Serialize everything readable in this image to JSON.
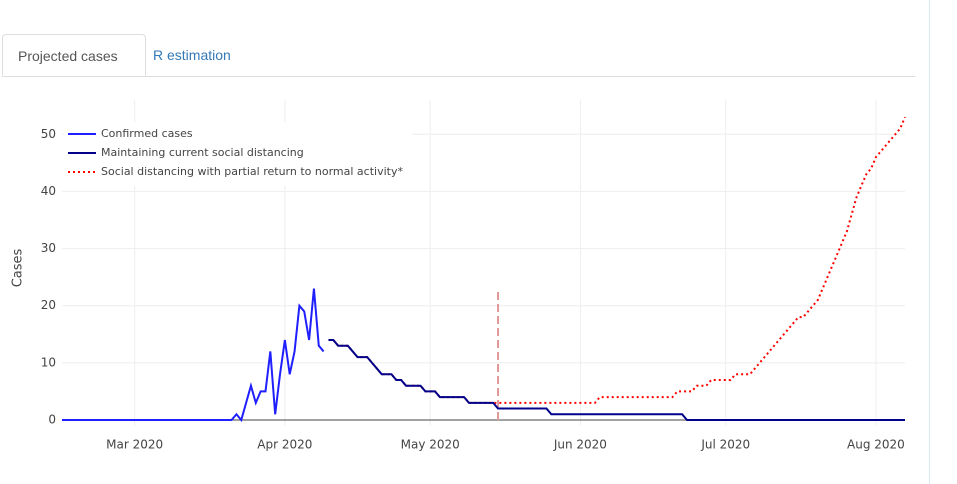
{
  "tabs": [
    "Projected cases",
    "R estimation"
  ],
  "chart_data": {
    "type": "line",
    "y_label": "Cases",
    "xlim": [
      0,
      174
    ],
    "ylim": [
      -1,
      56
    ],
    "xticks": [
      {
        "value": 15,
        "label": "Mar 2020"
      },
      {
        "value": 46,
        "label": "Apr 2020"
      },
      {
        "value": 76,
        "label": "May 2020"
      },
      {
        "value": 107,
        "label": "Jun 2020"
      },
      {
        "value": 137,
        "label": "Jul 2020"
      },
      {
        "value": 168,
        "label": "Aug 2020"
      }
    ],
    "yticks": [
      0,
      10,
      20,
      30,
      40,
      50
    ],
    "grid": true,
    "legend": "top-left",
    "vline": {
      "x": 90,
      "top": 23,
      "color": "#e09999"
    },
    "series": [
      {
        "name": "Confirmed cases",
        "color": "#1f1fff",
        "dash": "solid",
        "x": [
          0,
          1,
          2,
          3,
          4,
          5,
          6,
          7,
          8,
          9,
          10,
          11,
          12,
          13,
          14,
          15,
          16,
          17,
          18,
          19,
          20,
          21,
          22,
          23,
          24,
          25,
          26,
          27,
          28,
          29,
          30,
          31,
          32,
          33,
          34,
          35,
          36,
          37,
          38,
          39,
          40,
          41,
          42,
          43,
          44,
          45,
          46,
          47,
          48,
          49,
          50,
          51,
          52,
          53,
          54
        ],
        "values": [
          0,
          0,
          0,
          0,
          0,
          0,
          0,
          0,
          0,
          0,
          0,
          0,
          0,
          0,
          0,
          0,
          0,
          0,
          0,
          0,
          0,
          0,
          0,
          0,
          0,
          0,
          0,
          0,
          0,
          0,
          0,
          0,
          0,
          0,
          0,
          0,
          1,
          0,
          3,
          6,
          3,
          5,
          5,
          12,
          1,
          8,
          14,
          8,
          12,
          20,
          19,
          14,
          23,
          13,
          12
        ]
      },
      {
        "name": "Maintaining current social distancing",
        "color": "#00008b",
        "dash": "solid",
        "x": [
          55,
          56,
          57,
          58,
          59,
          60,
          61,
          62,
          63,
          64,
          65,
          66,
          67,
          68,
          69,
          70,
          71,
          72,
          73,
          74,
          75,
          76,
          77,
          78,
          79,
          80,
          81,
          82,
          83,
          84,
          85,
          86,
          87,
          88,
          89,
          90,
          91,
          92,
          93,
          94,
          95,
          96,
          97,
          98,
          99,
          100,
          101,
          102,
          103,
          104,
          105,
          106,
          107,
          108,
          109,
          110,
          111,
          112,
          113,
          114,
          115,
          116,
          117,
          118,
          119,
          120,
          121,
          122,
          123,
          124,
          125,
          126,
          127,
          128,
          129,
          130,
          131,
          132,
          133,
          134,
          135,
          136,
          137,
          138,
          139,
          140,
          141,
          142,
          143,
          144,
          145,
          146,
          147,
          148,
          149,
          150,
          151,
          152,
          153,
          154,
          155,
          156,
          157,
          158,
          159,
          160,
          161,
          162,
          163,
          164,
          165,
          166,
          167,
          168,
          169,
          170,
          171,
          172,
          173,
          174
        ],
        "values": [
          14,
          14,
          13,
          13,
          13,
          12,
          11,
          11,
          11,
          10,
          9,
          8,
          8,
          8,
          7,
          7,
          6,
          6,
          6,
          6,
          5,
          5,
          5,
          4,
          4,
          4,
          4,
          4,
          4,
          3,
          3,
          3,
          3,
          3,
          3,
          2,
          2,
          2,
          2,
          2,
          2,
          2,
          2,
          2,
          2,
          2,
          1,
          1,
          1,
          1,
          1,
          1,
          1,
          1,
          1,
          1,
          1,
          1,
          1,
          1,
          1,
          1,
          1,
          1,
          1,
          1,
          1,
          1,
          1,
          1,
          1,
          1,
          1,
          1,
          0,
          0,
          0,
          0,
          0,
          0,
          0,
          0,
          0,
          0,
          0,
          0,
          0,
          0,
          0,
          0,
          0,
          0,
          0,
          0,
          0,
          0,
          0,
          0,
          0,
          0,
          0,
          0,
          0,
          0,
          0,
          0,
          0,
          0,
          0,
          0,
          0,
          0,
          0,
          0,
          0,
          0,
          0,
          0,
          0,
          0
        ]
      },
      {
        "name": "Social distancing with partial return to normal activity*",
        "color": "#ff0000",
        "dash": "dot",
        "x": [
          55,
          56,
          57,
          58,
          59,
          60,
          61,
          62,
          63,
          64,
          65,
          66,
          67,
          68,
          69,
          70,
          71,
          72,
          73,
          74,
          75,
          76,
          77,
          78,
          79,
          80,
          81,
          82,
          83,
          84,
          85,
          86,
          87,
          88,
          89,
          90,
          91,
          92,
          93,
          94,
          95,
          96,
          97,
          98,
          99,
          100,
          101,
          102,
          103,
          104,
          105,
          106,
          107,
          108,
          109,
          110,
          111,
          112,
          113,
          114,
          115,
          116,
          117,
          118,
          119,
          120,
          121,
          122,
          123,
          124,
          125,
          126,
          127,
          128,
          129,
          130,
          131,
          132,
          133,
          134,
          135,
          136,
          137,
          138,
          139,
          140,
          141,
          142,
          143,
          144,
          145,
          146,
          147,
          148,
          149,
          150,
          151,
          152,
          153,
          154,
          155,
          156,
          157,
          158,
          159,
          160,
          161,
          162,
          163,
          164,
          165,
          166,
          167,
          168,
          169,
          170,
          171,
          172,
          173,
          174
        ],
        "values": [
          14,
          14,
          13,
          13,
          13,
          12,
          11,
          11,
          11,
          10,
          9,
          8,
          8,
          8,
          7,
          7,
          6,
          6,
          6,
          6,
          5,
          5,
          5,
          4,
          4,
          4,
          4,
          4,
          4,
          3,
          3,
          3,
          3,
          3,
          3,
          3,
          3,
          3,
          3,
          3,
          3,
          3,
          3,
          3,
          3,
          3,
          3,
          3,
          3,
          3,
          3,
          3,
          3,
          3,
          3,
          3,
          4,
          4,
          4,
          4,
          4,
          4,
          4,
          4,
          4,
          4,
          4,
          4,
          4,
          4,
          4,
          4,
          5,
          5,
          5,
          5,
          6,
          6,
          6,
          7,
          7,
          7,
          7,
          7,
          8,
          8,
          8,
          8,
          9,
          10,
          11,
          12,
          13,
          14,
          15,
          16,
          17,
          18,
          18,
          19,
          20,
          21,
          23,
          25,
          27,
          29,
          31,
          33,
          36,
          39,
          41,
          43,
          44,
          46,
          47,
          48,
          49,
          50,
          51,
          53
        ]
      }
    ]
  }
}
